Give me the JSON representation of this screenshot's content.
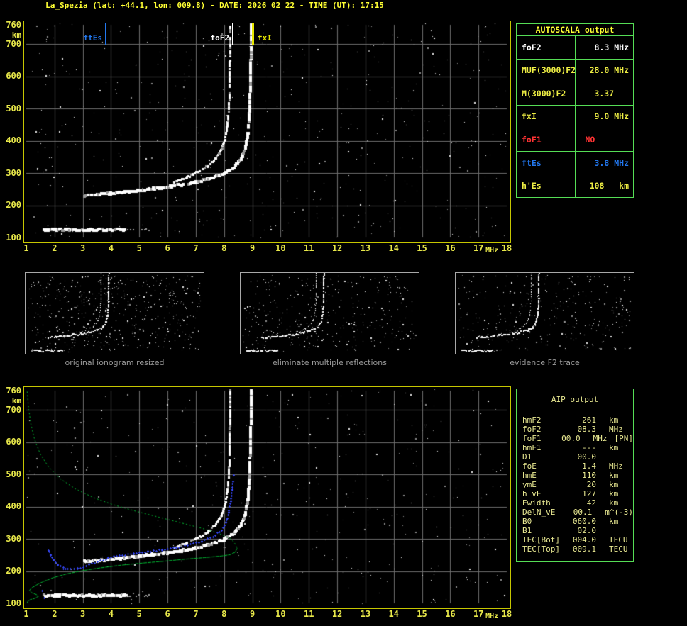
{
  "header": {
    "title": "La_Spezia (lat: +44.1, lon: 009.8) - DATE: 2026 02 22 - TIME (UT): 17:15"
  },
  "colors": {
    "title_yellow": "#FFFF33",
    "axis_yellow": "#E8E84A",
    "plot_border_yellow": "#C6C600",
    "grid_gray": "#6E6E6E",
    "table_border_green": "#55DD55",
    "aip_text": "#E9E992",
    "trace_white": "#FFFFFF",
    "profile_green": "#00BB33",
    "restored_blue": "#3344EE",
    "ftes_blue": "#2277EE",
    "fof1_red": "#FF3333",
    "value_yellow": "#EEEE44",
    "caption_gray": "#9A9A9A"
  },
  "autoscala_table": {
    "title": "AUTOSCALA output",
    "rows": [
      {
        "label": "foF2",
        "value": "8.3 MHz",
        "color": "#FFFFFF",
        "align": "right"
      },
      {
        "label": "MUF(3000)F2",
        "value": "28.0 MHz",
        "color": "#EEEE44",
        "align": "right"
      },
      {
        "label": "M(3000)F2",
        "value": "3.37",
        "color": "#EEEE44",
        "align": "center"
      },
      {
        "label": "fxI",
        "value": "9.0 MHz",
        "color": "#EEEE44",
        "align": "right"
      },
      {
        "label": "foF1",
        "value": "NO",
        "color": "#FF3333",
        "align": "left"
      },
      {
        "label": "ftEs",
        "value": "3.8 MHz",
        "color": "#2277EE",
        "align": "right"
      },
      {
        "label": "h'Es",
        "value": "108   km",
        "color": "#EEEE44",
        "align": "right"
      }
    ]
  },
  "thumbnails": [
    {
      "caption": "original ionogram resized"
    },
    {
      "caption": "eliminate multiple reflections"
    },
    {
      "caption": "evidence F2 trace"
    }
  ],
  "aip_panel": {
    "title": "AIP output",
    "rows": [
      {
        "label": "hmF2",
        "value": "261",
        "unit": "km",
        "extra": ""
      },
      {
        "label": "foF2",
        "value": "08.3",
        "unit": "MHz",
        "extra": ""
      },
      {
        "label": "foF1",
        "value": "00.0",
        "unit": "MHz",
        "extra": "[PN]"
      },
      {
        "label": "hmF1",
        "value": "---",
        "unit": "km",
        "extra": ""
      },
      {
        "label": "D1",
        "value": "00.0",
        "unit": "",
        "extra": ""
      },
      {
        "label": "foE",
        "value": "1.4",
        "unit": "MHz",
        "extra": ""
      },
      {
        "label": "hmE",
        "value": "110",
        "unit": "km",
        "extra": ""
      },
      {
        "label": "ymE",
        "value": "20",
        "unit": "km",
        "extra": ""
      },
      {
        "label": "h_vE",
        "value": "127",
        "unit": "km",
        "extra": ""
      },
      {
        "label": "Ewidth",
        "value": "42",
        "unit": "km",
        "extra": ""
      },
      {
        "label": "DelN_vE",
        "value": "00.1",
        "unit": "m^(-3)",
        "extra": ""
      },
      {
        "label": "B0",
        "value": "060.0",
        "unit": "km",
        "extra": ""
      },
      {
        "label": "B1",
        "value": "02.0",
        "unit": "",
        "extra": ""
      },
      {
        "label": "TEC[Bot]",
        "value": "004.0",
        "unit": "TECU",
        "extra": ""
      },
      {
        "label": "TEC[Top]",
        "value": "009.1",
        "unit": "TECU",
        "extra": ""
      }
    ]
  },
  "chart_data": [
    {
      "id": "scaled_ionogram",
      "type": "scatter",
      "title": "",
      "xlabel": "MHz",
      "ylabel": "km",
      "xlim": [
        1,
        18
      ],
      "ylim": [
        100,
        760
      ],
      "grid": true,
      "x_ticks": [
        1,
        2,
        3,
        4,
        5,
        6,
        7,
        8,
        9,
        10,
        11,
        12,
        13,
        14,
        15,
        16,
        17,
        18
      ],
      "y_ticks": [
        760,
        700,
        600,
        500,
        400,
        300,
        200,
        100
      ],
      "markers": [
        {
          "name": "ftEs",
          "label": "ftEs",
          "freq_mhz": 3.8,
          "color": "#2277EE",
          "label_side": "left"
        },
        {
          "name": "foF2",
          "label": "foF2",
          "freq_mhz": 8.3,
          "color": "#FFFFFF",
          "label_side": "left"
        },
        {
          "name": "fxI",
          "label": "fxI",
          "freq_mhz": 9.0,
          "color": "#E8E800",
          "label_side": "right"
        }
      ],
      "series": [
        {
          "name": "Es-layer-echo",
          "color": "#FFFFFF",
          "style": "band",
          "th": 4,
          "skip": 0.08,
          "points": [
            [
              1.62,
              124
            ],
            [
              4.55,
              124
            ]
          ]
        },
        {
          "name": "Es-echo-weak-extension",
          "color": "#9A9A9A",
          "style": "band",
          "th": 2,
          "skip": 0.55,
          "points": [
            [
              4.55,
              124
            ],
            [
              5.35,
              124
            ]
          ]
        },
        {
          "name": "F2-trace-extraordinary",
          "color": "#FFFFFF",
          "style": "band",
          "th": 4,
          "skip": 0.12,
          "points": [
            [
              3.05,
              229
            ],
            [
              3.5,
              233
            ],
            [
              4.0,
              237
            ],
            [
              4.5,
              241
            ],
            [
              5.0,
              246
            ],
            [
              5.5,
              251
            ],
            [
              6.0,
              257
            ],
            [
              6.5,
              264
            ],
            [
              7.0,
              272
            ],
            [
              7.5,
              283
            ],
            [
              8.0,
              298
            ],
            [
              8.35,
              317
            ],
            [
              8.6,
              342
            ],
            [
              8.75,
              378
            ],
            [
              8.85,
              425
            ],
            [
              8.9,
              490
            ],
            [
              8.93,
              570
            ],
            [
              8.95,
              665
            ],
            [
              8.96,
              760
            ]
          ]
        },
        {
          "name": "F2-trace-ordinary",
          "color": "#FFFFFF",
          "style": "band",
          "th": 3,
          "skip": 0.15,
          "points": [
            [
              6.2,
              270
            ],
            [
              6.7,
              287
            ],
            [
              7.1,
              304
            ],
            [
              7.45,
              323
            ],
            [
              7.72,
              346
            ],
            [
              7.92,
              374
            ],
            [
              8.05,
              410
            ],
            [
              8.13,
              455
            ],
            [
              8.18,
              515
            ],
            [
              8.2,
              590
            ],
            [
              8.21,
              670
            ],
            [
              8.22,
              760
            ]
          ]
        }
      ]
    },
    {
      "id": "aip_profile_ionogram",
      "type": "scatter",
      "title": "",
      "xlabel": "MHz",
      "ylabel": "km",
      "xlim": [
        1,
        18
      ],
      "ylim": [
        100,
        760
      ],
      "grid": true,
      "x_ticks": [
        1,
        2,
        3,
        4,
        5,
        6,
        7,
        8,
        9,
        10,
        11,
        12,
        13,
        14,
        15,
        16,
        17,
        18
      ],
      "y_ticks": [
        760,
        700,
        600,
        500,
        400,
        300,
        200,
        100
      ],
      "markers": [],
      "series": [
        {
          "name": "Es-layer-echo",
          "color": "#FFFFFF",
          "style": "band",
          "th": 4,
          "skip": 0.08,
          "points": [
            [
              1.62,
              124
            ],
            [
              4.55,
              124
            ]
          ]
        },
        {
          "name": "Es-echo-weak-extension",
          "color": "#9A9A9A",
          "style": "band",
          "th": 2,
          "skip": 0.55,
          "points": [
            [
              4.55,
              124
            ],
            [
              5.35,
              124
            ]
          ]
        },
        {
          "name": "F2-trace-extraordinary",
          "color": "#FFFFFF",
          "style": "band",
          "th": 4,
          "skip": 0.12,
          "points": [
            [
              3.05,
              229
            ],
            [
              3.5,
              233
            ],
            [
              4.0,
              237
            ],
            [
              4.5,
              241
            ],
            [
              5.0,
              246
            ],
            [
              5.5,
              251
            ],
            [
              6.0,
              257
            ],
            [
              6.5,
              264
            ],
            [
              7.0,
              272
            ],
            [
              7.5,
              283
            ],
            [
              8.0,
              298
            ],
            [
              8.35,
              317
            ],
            [
              8.6,
              342
            ],
            [
              8.75,
              378
            ],
            [
              8.85,
              425
            ],
            [
              8.9,
              490
            ],
            [
              8.93,
              570
            ],
            [
              8.95,
              665
            ],
            [
              8.96,
              760
            ]
          ]
        },
        {
          "name": "F2-trace-ordinary",
          "color": "#FFFFFF",
          "style": "band",
          "th": 3,
          "skip": 0.15,
          "points": [
            [
              6.2,
              270
            ],
            [
              6.7,
              287
            ],
            [
              7.1,
              304
            ],
            [
              7.45,
              323
            ],
            [
              7.72,
              346
            ],
            [
              7.92,
              374
            ],
            [
              8.05,
              410
            ],
            [
              8.13,
              455
            ],
            [
              8.18,
              515
            ],
            [
              8.2,
              590
            ],
            [
              8.21,
              670
            ],
            [
              8.22,
              760
            ]
          ]
        },
        {
          "name": "electron-density-profile-topside",
          "color": "#00BB33",
          "style": "dashed",
          "dash": [
            2,
            3
          ],
          "points": [
            [
              1.02,
              758
            ],
            [
              1.07,
              706
            ],
            [
              1.15,
              658
            ],
            [
              1.28,
              610
            ],
            [
              1.48,
              565
            ],
            [
              1.78,
              524
            ],
            [
              2.2,
              487
            ],
            [
              2.75,
              455
            ],
            [
              3.4,
              428
            ],
            [
              4.1,
              406
            ],
            [
              4.9,
              386
            ],
            [
              5.7,
              368
            ],
            [
              6.5,
              350
            ],
            [
              7.2,
              334
            ],
            [
              7.8,
              318
            ],
            [
              8.2,
              302
            ],
            [
              8.35,
              290
            ],
            [
              8.45,
              272
            ]
          ]
        },
        {
          "name": "electron-density-profile-bottomside",
          "color": "#00BB33",
          "style": "dashed",
          "dash": [
            5,
            1
          ],
          "points": [
            [
              8.45,
              272
            ],
            [
              8.38,
              260
            ],
            [
              8.2,
              252
            ],
            [
              7.9,
              248
            ],
            [
              7.3,
              243
            ],
            [
              6.6,
              238
            ],
            [
              5.9,
              232
            ],
            [
              5.1,
              226
            ],
            [
              4.3,
              219
            ],
            [
              3.6,
              211
            ],
            [
              2.95,
              202
            ],
            [
              2.4,
              192
            ],
            [
              1.95,
              181
            ],
            [
              1.6,
              169
            ],
            [
              1.35,
              158
            ],
            [
              1.18,
              149
            ],
            [
              1.1,
              141
            ],
            [
              1.18,
              134
            ],
            [
              1.35,
              128
            ],
            [
              1.42,
              123
            ],
            [
              1.3,
              117
            ],
            [
              1.12,
              112
            ],
            [
              1.04,
              107
            ],
            [
              1.02,
              102
            ]
          ]
        },
        {
          "name": "restored-F2-trace",
          "color": "#3344EE",
          "style": "cross",
          "points": [
            [
              1.78,
              268
            ],
            [
              1.85,
              250
            ],
            [
              1.95,
              235
            ],
            [
              2.1,
              220
            ],
            [
              2.3,
              210
            ],
            [
              2.55,
              206
            ],
            [
              2.8,
              208
            ],
            [
              3.0,
              214
            ],
            [
              3.2,
              222
            ],
            [
              3.5,
              230
            ],
            [
              3.9,
              241
            ],
            [
              4.3,
              248
            ],
            [
              4.8,
              255
            ],
            [
              5.3,
              261
            ],
            [
              5.8,
              267
            ],
            [
              6.3,
              274
            ],
            [
              6.8,
              283
            ],
            [
              7.2,
              294
            ],
            [
              7.6,
              308
            ],
            [
              7.9,
              327
            ],
            [
              8.05,
              352
            ],
            [
              8.15,
              382
            ],
            [
              8.22,
              418
            ],
            [
              8.27,
              452
            ],
            [
              8.3,
              480
            ]
          ],
          "extra_points": [
            [
              1.55,
              140
            ],
            [
              1.62,
              118
            ],
            [
              8.32,
              498
            ]
          ]
        }
      ]
    }
  ]
}
